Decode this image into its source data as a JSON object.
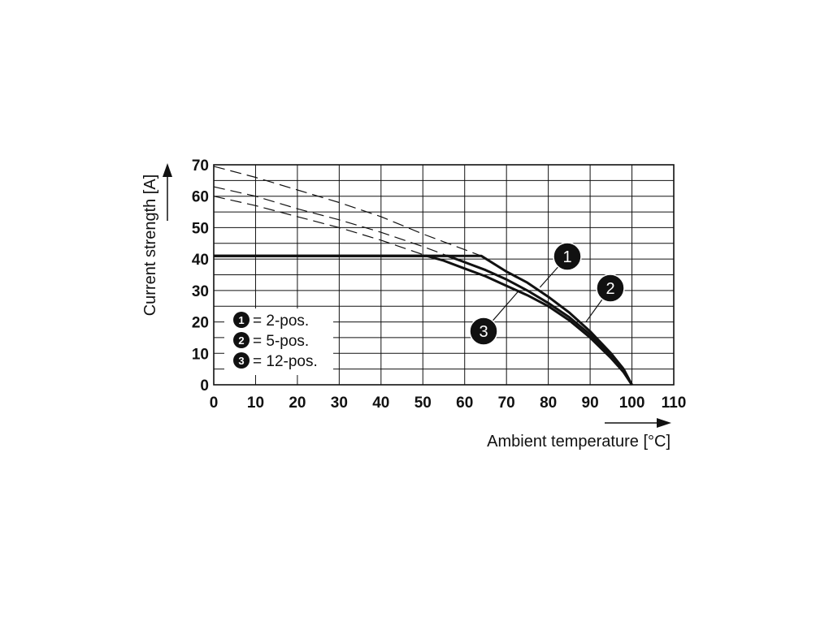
{
  "chart_data": {
    "type": "line",
    "xlabel": "Ambient temperature [°C]",
    "ylabel": "Current strength [A]",
    "xlim": [
      0,
      110
    ],
    "ylim": [
      0,
      70
    ],
    "x_ticks": [
      0,
      10,
      20,
      30,
      40,
      50,
      60,
      70,
      80,
      90,
      100,
      110
    ],
    "y_ticks": [
      0,
      10,
      20,
      30,
      40,
      50,
      60,
      70
    ],
    "grid": true,
    "legend": [
      {
        "marker": "1",
        "label": "= 2-pos."
      },
      {
        "marker": "2",
        "label": "= 5-pos."
      },
      {
        "marker": "3",
        "label": "= 12-pos."
      }
    ],
    "series": [
      {
        "marker": "1",
        "rated": {
          "x": [
            0,
            64,
            70,
            75,
            80,
            85,
            90,
            95,
            98,
            100
          ],
          "y": [
            41,
            41,
            36,
            32.5,
            28,
            23,
            17,
            10,
            5,
            0
          ]
        },
        "derating": {
          "x": [
            0,
            10,
            20,
            30,
            40,
            50,
            64
          ],
          "y": [
            69.5,
            66,
            62,
            58,
            53.5,
            48,
            41
          ]
        }
      },
      {
        "marker": "2",
        "rated": {
          "x": [
            0,
            56,
            60,
            65,
            70,
            75,
            80,
            85,
            90,
            95,
            98,
            100
          ],
          "y": [
            41,
            41,
            39,
            36.5,
            33.5,
            30,
            26,
            21.5,
            16,
            9,
            4.5,
            0
          ]
        },
        "derating": {
          "x": [
            0,
            10,
            20,
            30,
            40,
            50,
            56
          ],
          "y": [
            63,
            60,
            56,
            52.5,
            48.5,
            44,
            41
          ]
        }
      },
      {
        "marker": "3",
        "rated": {
          "x": [
            0,
            51,
            55,
            60,
            65,
            70,
            75,
            80,
            85,
            90,
            95,
            98,
            100
          ],
          "y": [
            41,
            41,
            39.5,
            37,
            34.5,
            31.5,
            28.5,
            25,
            20.5,
            15,
            8.5,
            4,
            0
          ]
        },
        "derating": {
          "x": [
            0,
            10,
            20,
            30,
            40,
            51
          ],
          "y": [
            60,
            57,
            53.5,
            50,
            46,
            41
          ]
        }
      }
    ],
    "callouts": [
      {
        "marker": "1",
        "at": [
          78,
          31
        ]
      },
      {
        "marker": "2",
        "at": [
          89,
          20
        ]
      },
      {
        "marker": "3",
        "at": [
          73,
          30
        ]
      }
    ]
  }
}
